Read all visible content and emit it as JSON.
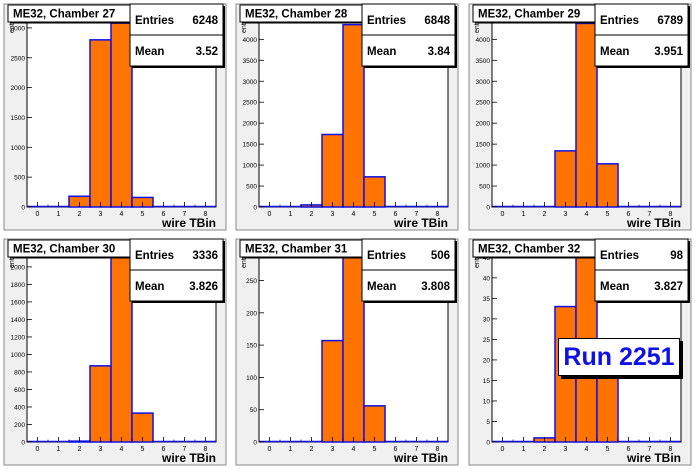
{
  "x_axis_title": "wire TBin",
  "y_axis_title": "entries",
  "stats_labels": {
    "entries": "Entries",
    "mean": "Mean"
  },
  "run_label": "Run 2251",
  "colors": {
    "fill": "#ff7300",
    "outline": "#1010e8",
    "frame_bg": "#f0f0f0",
    "plot_bg": "#ffffff",
    "run_text": "#1010e8"
  },
  "chart_data": [
    {
      "type": "bar",
      "title": "ME32, Chamber 27",
      "entries": "6248",
      "mean": "3.52",
      "xlim": [
        -0.5,
        8.5
      ],
      "ylim": [
        0,
        3300
      ],
      "x_ticks": [
        0,
        1,
        2,
        3,
        4,
        5,
        6,
        7,
        8
      ],
      "y_ticks": [
        0,
        500,
        1000,
        1500,
        2000,
        2500,
        3000
      ],
      "bins": [
        {
          "x": 2,
          "y": 180
        },
        {
          "x": 3,
          "y": 2800
        },
        {
          "x": 4,
          "y": 3080
        },
        {
          "x": 5,
          "y": 160
        }
      ]
    },
    {
      "type": "bar",
      "title": "ME32, Chamber 28",
      "entries": "6848",
      "mean": "3.84",
      "xlim": [
        -0.5,
        8.5
      ],
      "ylim": [
        0,
        4700
      ],
      "x_ticks": [
        0,
        1,
        2,
        3,
        4,
        5,
        6,
        7,
        8
      ],
      "y_ticks": [
        0,
        500,
        1000,
        1500,
        2000,
        2500,
        3000,
        3500,
        4000,
        4500
      ],
      "bins": [
        {
          "x": 2,
          "y": 50
        },
        {
          "x": 3,
          "y": 1730
        },
        {
          "x": 4,
          "y": 4350
        },
        {
          "x": 5,
          "y": 720
        }
      ]
    },
    {
      "type": "bar",
      "title": "ME32, Chamber 29",
      "entries": "6789",
      "mean": "3.951",
      "xlim": [
        -0.5,
        8.5
      ],
      "ylim": [
        0,
        4700
      ],
      "x_ticks": [
        0,
        1,
        2,
        3,
        4,
        5,
        6,
        7,
        8
      ],
      "y_ticks": [
        0,
        500,
        1000,
        1500,
        2000,
        2500,
        3000,
        3500,
        4000,
        4500
      ],
      "bins": [
        {
          "x": 3,
          "y": 1340
        },
        {
          "x": 4,
          "y": 4380
        },
        {
          "x": 5,
          "y": 1030
        }
      ]
    },
    {
      "type": "bar",
      "title": "ME32, Chamber 30",
      "entries": "3336",
      "mean": "3.826",
      "xlim": [
        -0.5,
        8.5
      ],
      "ylim": [
        0,
        2250
      ],
      "x_ticks": [
        0,
        1,
        2,
        3,
        4,
        5,
        6,
        7,
        8
      ],
      "y_ticks": [
        0,
        200,
        400,
        600,
        800,
        1000,
        1200,
        1400,
        1600,
        1800,
        2000,
        2200
      ],
      "bins": [
        {
          "x": 2,
          "y": 10
        },
        {
          "x": 3,
          "y": 870
        },
        {
          "x": 4,
          "y": 2130
        },
        {
          "x": 5,
          "y": 330
        }
      ]
    },
    {
      "type": "bar",
      "title": "ME32, Chamber 31",
      "entries": "506",
      "mean": "3.808",
      "xlim": [
        -0.5,
        8.5
      ],
      "ylim": [
        0,
        305
      ],
      "x_ticks": [
        0,
        1,
        2,
        3,
        4,
        5,
        6,
        7,
        8
      ],
      "y_ticks": [
        0,
        50,
        100,
        150,
        200,
        250,
        300
      ],
      "bins": [
        {
          "x": 3,
          "y": 157
        },
        {
          "x": 4,
          "y": 292
        },
        {
          "x": 5,
          "y": 56
        }
      ]
    },
    {
      "type": "bar",
      "title": "ME32, Chamber 32",
      "entries": "98",
      "mean": "3.827",
      "xlim": [
        -0.5,
        8.5
      ],
      "ylim": [
        0,
        48
      ],
      "x_ticks": [
        0,
        1,
        2,
        3,
        4,
        5,
        6,
        7,
        8
      ],
      "y_ticks": [
        0,
        5,
        10,
        15,
        20,
        25,
        30,
        35,
        40,
        45
      ],
      "bins": [
        {
          "x": 2,
          "y": 1
        },
        {
          "x": 3,
          "y": 33
        },
        {
          "x": 4,
          "y": 46
        },
        {
          "x": 5,
          "y": 18
        }
      ]
    }
  ]
}
